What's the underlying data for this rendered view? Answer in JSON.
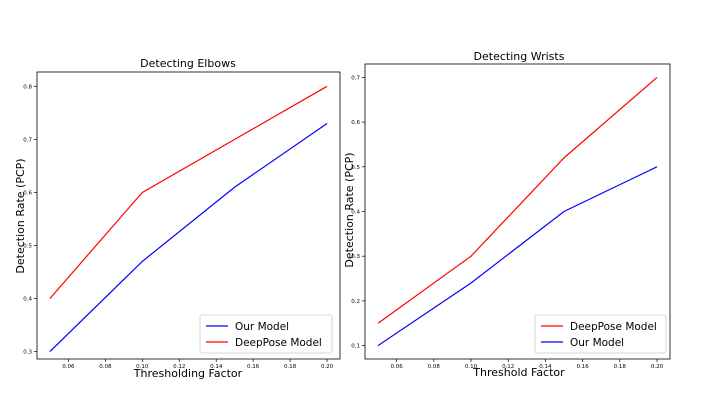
{
  "chart_data": [
    {
      "type": "line",
      "title": "Detecting Elbows",
      "xlabel": "Thresholding Factor",
      "ylabel": "Detection Rate (PCP)",
      "xlim": [
        0.043,
        0.207
      ],
      "ylim": [
        0.286,
        0.827
      ],
      "xticks": [
        0.06,
        0.08,
        0.1,
        0.12,
        0.14,
        0.16,
        0.18,
        0.2
      ],
      "xtick_labels": [
        "0.06",
        "0.08",
        "0.10",
        "0.12",
        "0.14",
        "0.16",
        "0.18",
        "0.20"
      ],
      "yticks": [
        0.3,
        0.4,
        0.5,
        0.6,
        0.7,
        0.8
      ],
      "ytick_labels": [
        "0.3",
        "0.4",
        "0.5",
        "0.6",
        "0.7",
        "0.8"
      ],
      "legend_position": "bottom-right",
      "series": [
        {
          "name": "Our Model",
          "color": "#0000ff",
          "x": [
            0.05,
            0.1,
            0.15,
            0.2
          ],
          "values": [
            0.3,
            0.47,
            0.61,
            0.73
          ]
        },
        {
          "name": "DeepPose Model",
          "color": "#ff0000",
          "x": [
            0.05,
            0.1,
            0.15,
            0.2
          ],
          "values": [
            0.4,
            0.6,
            0.7,
            0.8
          ]
        }
      ]
    },
    {
      "type": "line",
      "title": "Detecting Wrists",
      "xlabel": "Threshold Factor",
      "ylabel": "Detection Rate (PCP)",
      "xlim": [
        0.043,
        0.207
      ],
      "ylim": [
        0.07,
        0.73
      ],
      "xticks": [
        0.06,
        0.08,
        0.1,
        0.12,
        0.14,
        0.16,
        0.18,
        0.2
      ],
      "xtick_labels": [
        "0.06",
        "0.08",
        "0.10",
        "0.12",
        "0.14",
        "0.16",
        "0.18",
        "0.20"
      ],
      "yticks": [
        0.1,
        0.2,
        0.3,
        0.4,
        0.5,
        0.6,
        0.7
      ],
      "ytick_labels": [
        "0.1",
        "0.2",
        "0.3",
        "0.4",
        "0.5",
        "0.6",
        "0.7"
      ],
      "legend_position": "bottom-right",
      "series": [
        {
          "name": "DeepPose Model",
          "color": "#ff0000",
          "x": [
            0.05,
            0.1,
            0.15,
            0.2
          ],
          "values": [
            0.15,
            0.3,
            0.52,
            0.7
          ]
        },
        {
          "name": "Our Model",
          "color": "#0000ff",
          "x": [
            0.05,
            0.1,
            0.15,
            0.2
          ],
          "values": [
            0.1,
            0.24,
            0.4,
            0.5
          ]
        }
      ]
    }
  ]
}
